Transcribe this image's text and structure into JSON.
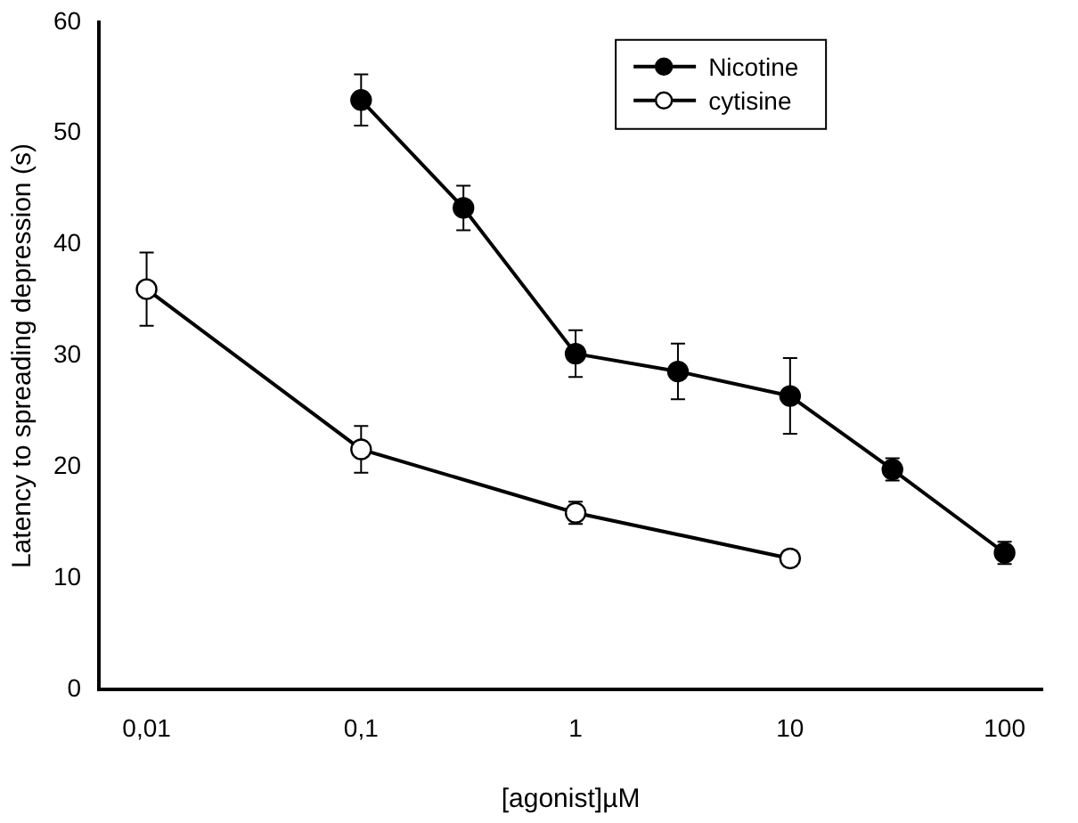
{
  "chart_data": {
    "type": "line",
    "xlabel": "[agonist]µM",
    "ylabel": "Latency to spreading depression (s)",
    "log": "x",
    "xlim": [
      0.006,
      150
    ],
    "xticks": [
      {
        "value": 0.01,
        "label": "0,01"
      },
      {
        "value": 0.1,
        "label": "0,1"
      },
      1,
      10,
      100
    ],
    "ylim": [
      0,
      60
    ],
    "yticks": [
      0,
      10,
      20,
      30,
      40,
      50,
      60
    ],
    "legend": "top right",
    "grid": false,
    "line_style": "solid",
    "series": [
      {
        "name": "Nicotine",
        "color": "#000000",
        "marker": "circle",
        "x": [
          0.1,
          0.3,
          1,
          3,
          10,
          30,
          100
        ],
        "values": [
          53,
          43.3,
          30.2,
          28.6,
          26.4,
          19.8,
          12.3
        ],
        "errors": [
          2.3,
          2,
          2.1,
          2.5,
          3.4,
          1,
          1
        ]
      },
      {
        "name": "cytisine",
        "color": "#000000",
        "marker": "circle",
        "x": [
          0.01,
          0.1,
          1,
          10
        ],
        "values": [
          36,
          21.6,
          15.9,
          11.8
        ],
        "errors": [
          3.3,
          2.1,
          1,
          0.7
        ]
      }
    ]
  }
}
